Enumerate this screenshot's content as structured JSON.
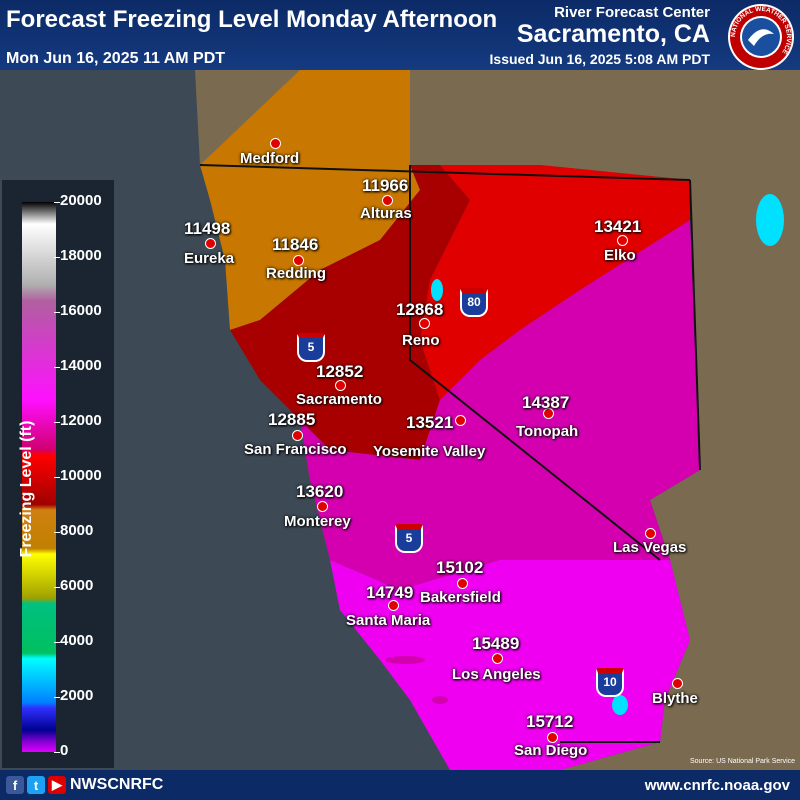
{
  "header": {
    "title": "Forecast Freezing Level Monday Afternoon",
    "valid_time": "Mon Jun 16, 2025 11 AM PDT",
    "center": "River Forecast Center",
    "city": "Sacramento, CA",
    "issued": "Issued Jun 16, 2025 5:08 AM PDT",
    "logo_text": "NATIONAL WEATHER SERVICE"
  },
  "legend": {
    "title": "Freezing Level (ft)",
    "ticks": [
      "20000",
      "18000",
      "16000",
      "14000",
      "12000",
      "10000",
      "8000",
      "6000",
      "4000",
      "2000",
      "0"
    ]
  },
  "highways": {
    "i80": "80",
    "i5_north": "5",
    "i5_south": "5",
    "i10": "10"
  },
  "stations": [
    {
      "city": "Medford",
      "value": ""
    },
    {
      "city": "Alturas",
      "value": "11966"
    },
    {
      "city": "Eureka",
      "value": "11498"
    },
    {
      "city": "Redding",
      "value": "11846"
    },
    {
      "city": "Elko",
      "value": "13421"
    },
    {
      "city": "Reno",
      "value": "12868"
    },
    {
      "city": "Sacramento",
      "value": "12852"
    },
    {
      "city": "San Francisco",
      "value": "12885"
    },
    {
      "city": "Yosemite Valley",
      "value": "13521"
    },
    {
      "city": "Tonopah",
      "value": "14387"
    },
    {
      "city": "Monterey",
      "value": "13620"
    },
    {
      "city": "Las Vegas",
      "value": ""
    },
    {
      "city": "Bakersfield",
      "value": "15102"
    },
    {
      "city": "Santa Maria",
      "value": "14749"
    },
    {
      "city": "Los Angeles",
      "value": "15489"
    },
    {
      "city": "Blythe",
      "value": ""
    },
    {
      "city": "San Diego",
      "value": "15712"
    }
  ],
  "credit": "Source: US National Park Service",
  "footer": {
    "handle": "NWSCNRFC",
    "website": "www.cnrfc.noaa.gov",
    "social": [
      "f",
      "t",
      "▶"
    ]
  },
  "colors": {
    "ocean": "#3d4a56",
    "orange": "#c87800",
    "darkred": "#a80000",
    "red": "#e00000",
    "magenta": "#e400d8",
    "hotpink": "#f000f0"
  }
}
